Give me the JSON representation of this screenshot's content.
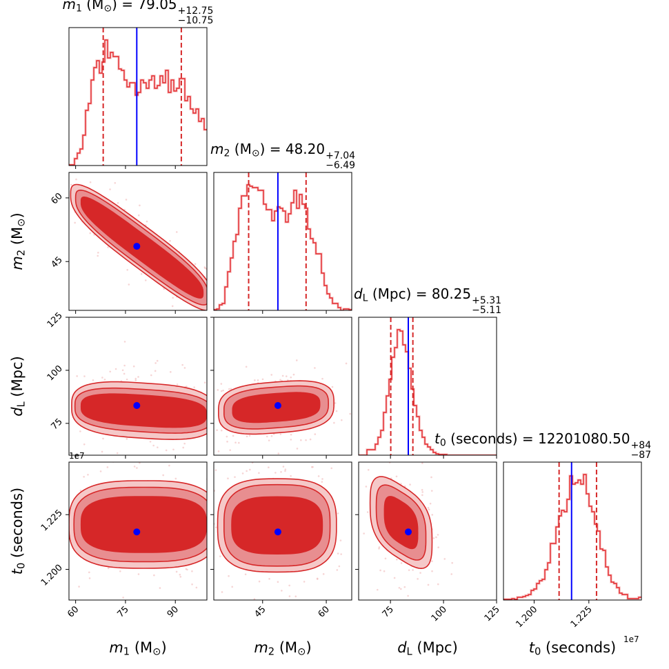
{
  "chart_data": {
    "type": "corner",
    "colors": {
      "histogram": "#e3262a",
      "contour_line": "#d62728",
      "contour_inner": "#d62728",
      "contour_mid": "#e88e90",
      "contour_outer": "#f5c8c8",
      "samples": "#efb2b2",
      "quantile": "#d62728",
      "truth": "#0000ff"
    },
    "offset_text": "1e7",
    "parameters": [
      {
        "key": "m1",
        "symbol": "m",
        "sub": "1",
        "unit": "M",
        "unit_sub": "⊙",
        "range": [
          58,
          99.5
        ],
        "ticks": [
          60,
          75,
          90
        ],
        "tick_labels": [
          "60",
          "75",
          "90"
        ],
        "truth": 78.4,
        "quantile_lines": [
          68.3,
          91.8
        ],
        "title": {
          "value": "79.05",
          "plus": "+12.75",
          "minus": "−10.75"
        },
        "hist_counts": [
          0.5,
          0.5,
          5,
          9,
          12,
          22,
          40,
          45,
          62,
          71,
          76,
          67,
          75,
          91,
          78,
          82,
          79,
          79,
          70,
          69,
          62,
          57,
          60,
          60,
          51,
          53,
          62,
          60,
          56,
          62,
          65,
          56,
          58,
          65,
          60,
          69,
          53,
          62,
          54,
          56,
          63,
          63,
          47,
          50,
          41,
          38,
          41,
          32,
          34,
          26
        ]
      },
      {
        "key": "m2",
        "symbol": "m",
        "sub": "2",
        "unit": "M",
        "unit_sub": "⊙",
        "range": [
          33.5,
          66
        ],
        "ticks": [
          45,
          60
        ],
        "tick_labels": [
          "45",
          "60"
        ],
        "truth": 48.6,
        "quantile_lines": [
          41.71,
          55.24
        ],
        "title": {
          "value": "48.20",
          "plus": "+7.04",
          "minus": "−6.49"
        },
        "hist_counts": [
          0.5,
          1,
          4,
          5,
          17,
          28,
          38,
          50,
          55,
          74,
          83,
          83,
          91,
          90,
          89,
          89,
          87,
          87,
          77,
          73,
          73,
          65,
          72,
          75,
          74,
          72,
          64,
          70,
          78,
          87,
          74,
          84,
          77,
          74,
          59,
          52,
          49,
          41,
          41,
          27,
          18,
          12,
          9,
          5,
          5,
          2,
          0,
          1,
          1,
          0.5
        ]
      },
      {
        "key": "dL",
        "symbol": "d",
        "sub": "L",
        "unit": "Mpc",
        "unit_sub": "",
        "range": [
          60,
          125
        ],
        "ticks": [
          75,
          100,
          125
        ],
        "tick_labels": [
          "75",
          "100",
          "125"
        ],
        "truth": 83.4,
        "quantile_lines": [
          75.14,
          85.56
        ],
        "title": {
          "value": "80.25",
          "plus": "+5.31",
          "minus": "−5.11"
        },
        "hist_counts": [
          0,
          0,
          0,
          4,
          4,
          4,
          8,
          13,
          18,
          31,
          43,
          55,
          71,
          78,
          91,
          90,
          80,
          75,
          63,
          48,
          36,
          28,
          18,
          13,
          8,
          6,
          4,
          2,
          1,
          0.5,
          0.5,
          0.5,
          0,
          0,
          0,
          0,
          0,
          0,
          0,
          0,
          0,
          0,
          0,
          0,
          0,
          0,
          0,
          0,
          0,
          0
        ]
      },
      {
        "key": "t0",
        "symbol": "t",
        "sub": "0",
        "unit": "seconds",
        "unit_sub": "",
        "range": [
          1.186,
          1.249
        ],
        "ticks": [
          1.2,
          1.225
        ],
        "tick_labels": [
          "1.200",
          "1.225"
        ],
        "truth": 1.2171,
        "quantile_lines": [
          1.2114,
          1.2285
        ],
        "title": {
          "value": "12201080.50",
          "plus": "+84",
          "minus": "−87"
        },
        "hist_counts": [
          0.5,
          0.5,
          0.5,
          1,
          0.5,
          2,
          2,
          2.5,
          3.3,
          4,
          7,
          8,
          12,
          14,
          15,
          22,
          27,
          41,
          41,
          53,
          61,
          65,
          64,
          73,
          90,
          84,
          85,
          87,
          84,
          91,
          77,
          68,
          64,
          55,
          50,
          37,
          36,
          24,
          18,
          13,
          12,
          9,
          5,
          4,
          4,
          1,
          1,
          1,
          1,
          2
        ]
      }
    ],
    "hist_ylim": [
      0,
      100
    ],
    "pairs": [
      {
        "x": 0,
        "y": 1,
        "center": [
          80,
          48.3
        ],
        "slope": -0.58,
        "levels": [
          [
            18.5,
            3.5
          ],
          [
            20,
            4.7
          ],
          [
            21.5,
            5.6
          ]
        ]
      },
      {
        "x": 0,
        "y": 2,
        "center": [
          80.5,
          81
        ],
        "slope": -0.1,
        "levels": [
          [
            19,
            7.5
          ],
          [
            20.7,
            10
          ],
          [
            21.7,
            13
          ]
        ]
      },
      {
        "x": 1,
        "y": 2,
        "center": [
          48.2,
          82.5
        ],
        "slope": 0.15,
        "levels": [
          [
            10.4,
            6.8
          ],
          [
            12.3,
            9.6
          ],
          [
            13.6,
            12
          ]
        ]
      },
      {
        "x": 0,
        "y": 3,
        "center": [
          80.5,
          1.2205
        ],
        "slope": 0,
        "levels": [
          [
            19,
            0.013
          ],
          [
            21,
            0.017
          ],
          [
            22.5,
            0.02
          ]
        ]
      },
      {
        "x": 1,
        "y": 3,
        "center": [
          48.4,
          1.2201
        ],
        "slope": 0,
        "levels": [
          [
            10.8,
            0.0133
          ],
          [
            12.5,
            0.0186
          ],
          [
            14,
            0.0213
          ]
        ]
      },
      {
        "x": 2,
        "y": 3,
        "center": [
          80,
          1.2214
        ],
        "slope": -0.0006,
        "levels": [
          [
            8.1,
            0.01
          ],
          [
            11.7,
            0.014
          ],
          [
            14.6,
            0.017
          ]
        ]
      }
    ]
  }
}
